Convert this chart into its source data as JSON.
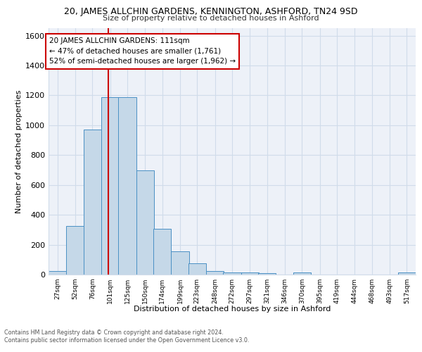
{
  "title_main": "20, JAMES ALLCHIN GARDENS, KENNINGTON, ASHFORD, TN24 9SD",
  "title_sub": "Size of property relative to detached houses in Ashford",
  "xlabel": "Distribution of detached houses by size in Ashford",
  "ylabel": "Number of detached properties",
  "bar_labels": [
    "27sqm",
    "52sqm",
    "76sqm",
    "101sqm",
    "125sqm",
    "150sqm",
    "174sqm",
    "199sqm",
    "223sqm",
    "248sqm",
    "272sqm",
    "297sqm",
    "321sqm",
    "346sqm",
    "370sqm",
    "395sqm",
    "419sqm",
    "444sqm",
    "468sqm",
    "493sqm",
    "517sqm"
  ],
  "bar_values": [
    25,
    325,
    970,
    1190,
    1190,
    700,
    305,
    155,
    75,
    25,
    15,
    15,
    10,
    0,
    15,
    0,
    0,
    0,
    0,
    0,
    15
  ],
  "bar_color": "#c5d8e8",
  "bar_edge_color": "#4a90c4",
  "property_line_x": 111,
  "property_line_color": "#cc0000",
  "annotation_text": "20 JAMES ALLCHIN GARDENS: 111sqm\n← 47% of detached houses are smaller (1,761)\n52% of semi-detached houses are larger (1,962) →",
  "annotation_box_color": "#ffffff",
  "annotation_box_edge": "#cc0000",
  "ylim": [
    0,
    1650
  ],
  "yticks": [
    0,
    200,
    400,
    600,
    800,
    1000,
    1200,
    1400,
    1600
  ],
  "grid_color": "#d0dcea",
  "bg_color": "#edf1f8",
  "footer_text": "Contains HM Land Registry data © Crown copyright and database right 2024.\nContains public sector information licensed under the Open Government Licence v3.0.",
  "bin_starts": [
    27,
    52,
    76,
    101,
    125,
    150,
    174,
    199,
    223,
    248,
    272,
    297,
    321,
    346,
    370,
    395,
    419,
    444,
    468,
    493,
    517
  ],
  "bin_width": 25
}
